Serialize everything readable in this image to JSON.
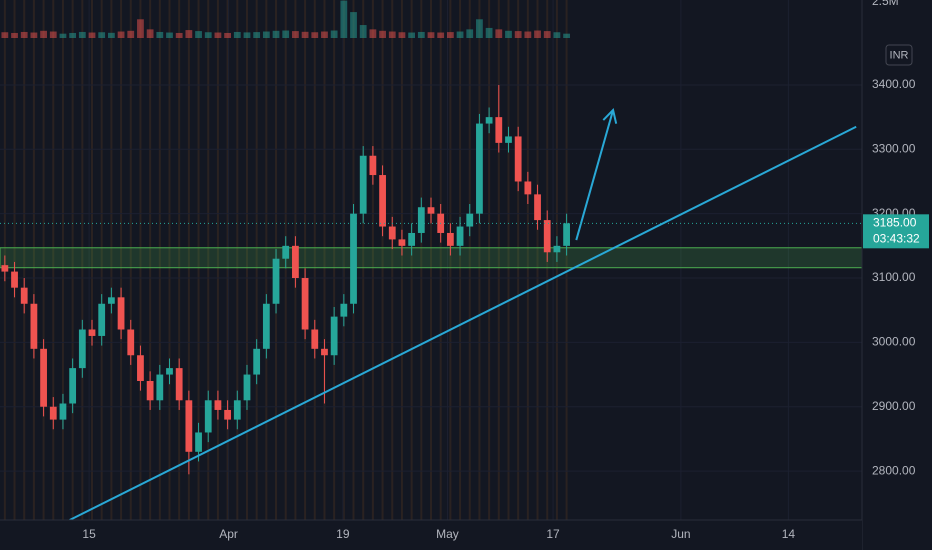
{
  "chart_data": {
    "type": "candlestick",
    "currency": "INR",
    "up_color": "#26a69a",
    "down_color": "#ef5350",
    "grid": true,
    "xlim": [
      -0.5,
      88.5
    ],
    "xticks": [
      {
        "value": 8.7,
        "label": "15"
      },
      {
        "value": 23.1,
        "label": "Apr"
      },
      {
        "value": 34.9,
        "label": "19"
      },
      {
        "value": 45.7,
        "label": "May"
      },
      {
        "value": 56.6,
        "label": "17"
      },
      {
        "value": 69.8,
        "label": "Jun"
      },
      {
        "value": 80.9,
        "label": "14"
      }
    ],
    "ylim": [
      2724,
      3532
    ],
    "yticks": [
      {
        "value": 2800,
        "label": "2800.00"
      },
      {
        "value": 2900,
        "label": "2900.00"
      },
      {
        "value": 3000,
        "label": "3000.00"
      },
      {
        "value": 3100,
        "label": "3100.00"
      },
      {
        "value": 3200,
        "label": "3200.00"
      },
      {
        "value": 3300,
        "label": "3300.00"
      },
      {
        "value": 3400,
        "label": "3400.00"
      }
    ],
    "volume_lim": [
      0,
      2640000
    ],
    "volume_ticks": [
      {
        "value": 2500000,
        "label": "2.5M"
      }
    ],
    "open": [
      3120,
      3110,
      3085,
      3060,
      2990,
      2900,
      2880,
      2905,
      2960,
      3020,
      3010,
      3060,
      3070,
      3020,
      2980,
      2940,
      2910,
      2950,
      2960,
      2910,
      2830,
      2860,
      2910,
      2895,
      2880,
      2910,
      2950,
      2990,
      3060,
      3130,
      3150,
      3100,
      3020,
      2990,
      2980,
      3040,
      3060,
      3200,
      3290,
      3260,
      3180,
      3160,
      3150,
      3170,
      3210,
      3200,
      3170,
      3150,
      3180,
      3200,
      3340,
      3350,
      3310,
      3320,
      3250,
      3230,
      3190,
      3140,
      3150
    ],
    "high": [
      3135,
      3125,
      3100,
      3075,
      3005,
      2915,
      2920,
      2975,
      3035,
      3035,
      3075,
      3085,
      3085,
      3035,
      2995,
      2955,
      2965,
      2975,
      2975,
      2925,
      2875,
      2925,
      2925,
      2910,
      2925,
      2965,
      3005,
      3075,
      3145,
      3165,
      3165,
      3115,
      3035,
      3005,
      3055,
      3075,
      3215,
      3305,
      3305,
      3275,
      3195,
      3175,
      3185,
      3225,
      3225,
      3215,
      3185,
      3195,
      3215,
      3355,
      3365,
      3400,
      3335,
      3335,
      3265,
      3245,
      3205,
      3165,
      3200
    ],
    "low": [
      3095,
      3070,
      3045,
      2975,
      2885,
      2865,
      2865,
      2890,
      2945,
      2995,
      2995,
      3045,
      3005,
      2965,
      2925,
      2895,
      2895,
      2935,
      2895,
      2795,
      2815,
      2845,
      2880,
      2865,
      2865,
      2895,
      2935,
      2975,
      3045,
      3115,
      3085,
      3005,
      2975,
      2905,
      2965,
      3025,
      3045,
      3185,
      3245,
      3165,
      3145,
      3135,
      3135,
      3155,
      3185,
      3155,
      3135,
      3135,
      3165,
      3185,
      3325,
      3295,
      3295,
      3235,
      3215,
      3175,
      3125,
      3125,
      3135
    ],
    "close": [
      3110,
      3085,
      3060,
      2990,
      2900,
      2880,
      2905,
      2960,
      3020,
      3010,
      3060,
      3070,
      3020,
      2980,
      2940,
      2910,
      2950,
      2960,
      2910,
      2830,
      2860,
      2910,
      2895,
      2880,
      2910,
      2950,
      2990,
      3060,
      3130,
      3150,
      3100,
      3020,
      2990,
      2980,
      3040,
      3060,
      3200,
      3290,
      3260,
      3180,
      3160,
      3150,
      3170,
      3210,
      3200,
      3170,
      3150,
      3180,
      3200,
      3340,
      3350,
      3310,
      3320,
      3250,
      3230,
      3190,
      3140,
      3150,
      3185
    ],
    "volume": [
      400000,
      350000,
      420000,
      380000,
      500000,
      450000,
      300000,
      350000,
      420000,
      380000,
      400000,
      360000,
      450000,
      500000,
      1300000,
      600000,
      420000,
      380000,
      350000,
      550000,
      480000,
      400000,
      380000,
      350000,
      420000,
      390000,
      410000,
      450000,
      500000,
      520000,
      480000,
      430000,
      400000,
      450000,
      520000,
      2600000,
      1800000,
      900000,
      600000,
      500000,
      450000,
      400000,
      380000,
      420000,
      400000,
      380000,
      410000,
      450000,
      600000,
      1300000,
      700000,
      600000,
      500000,
      480000,
      450000,
      520000,
      480000,
      400000,
      300000
    ],
    "last_price": {
      "value": 3185,
      "label": "3185.00"
    },
    "countdown": "03:43:32",
    "annotations": {
      "zone": {
        "y": [
          3116,
          3147
        ],
        "color": "#4caf50"
      },
      "trendline": {
        "x": [
          6.7,
          87.9
        ],
        "y": [
          2724,
          3335
        ],
        "color": "#29a8d6"
      },
      "arrow": {
        "x": [
          59.0,
          62.8
        ],
        "y": [
          3159,
          3361
        ],
        "color": "#29a8d6"
      }
    }
  }
}
